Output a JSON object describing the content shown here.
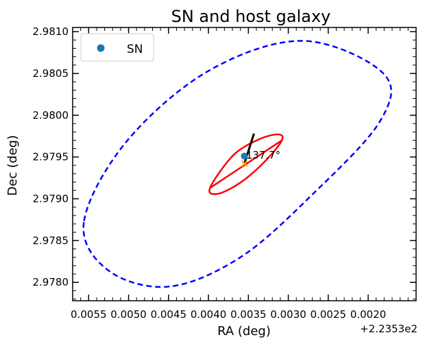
{
  "chart_data": {
    "type": "scatter",
    "title": "SN and host galaxy",
    "xlabel": "RA (deg)",
    "ylabel": "Dec (deg)",
    "x_offset_label": "+2.2353e2",
    "xlim": [
      0.0057,
      0.0014
    ],
    "ylim": [
      2.97778,
      2.98105
    ],
    "x_major_ticks": [
      0.0055,
      0.005,
      0.0045,
      0.004,
      0.0035,
      0.003,
      0.0025,
      0.002
    ],
    "x_tick_labels": [
      "0.0055",
      "0.0050",
      "0.0045",
      "0.0040",
      "0.0035",
      "0.0030",
      "0.0025",
      "0.0020"
    ],
    "y_major_ticks": [
      2.978,
      2.9785,
      2.979,
      2.9795,
      2.98,
      2.9805,
      2.981
    ],
    "y_tick_labels": [
      "2.9780",
      "2.9785",
      "2.9790",
      "2.9795",
      "2.9800",
      "2.9805",
      "2.9810"
    ],
    "legend_position": "upper-left",
    "grid": false,
    "series": [
      {
        "name": "SN",
        "kind": "scatter",
        "color": "#1f77b4",
        "points": [
          [
            0.00355,
            2.97951
          ]
        ]
      }
    ],
    "host_center": {
      "x": 0.00355,
      "y": 2.97942,
      "color": "#ffa500"
    },
    "outer_ellipse": {
      "color": "#0000ff",
      "style": "dashed",
      "outline": [
        [
          0.00556,
          2.97872
        ],
        [
          0.00525,
          2.97814
        ],
        [
          0.00449,
          2.97795
        ],
        [
          0.0036,
          2.9783
        ],
        [
          0.0027,
          2.97905
        ],
        [
          0.00185,
          2.97993
        ],
        [
          0.00181,
          2.9805
        ],
        [
          0.00282,
          2.98089
        ],
        [
          0.004,
          2.98053
        ],
        [
          0.00503,
          2.97968
        ]
      ]
    },
    "inner_ellipse": {
      "color": "#ff0000",
      "style": "solid",
      "outline": [
        [
          0.00398,
          2.97913
        ],
        [
          0.00388,
          2.97906
        ],
        [
          0.00359,
          2.9792
        ],
        [
          0.00328,
          2.97946
        ],
        [
          0.00308,
          2.9797
        ],
        [
          0.00313,
          2.97977
        ],
        [
          0.00337,
          2.97971
        ],
        [
          0.00369,
          2.97952
        ]
      ]
    },
    "angle_line": {
      "color": "#ff0000",
      "from": [
        0.00398,
        2.97913
      ],
      "to": [
        0.00308,
        2.9797
      ]
    },
    "direction_line": {
      "color": "#000000",
      "from": [
        0.00355,
        2.97942
      ],
      "to": [
        0.00343,
        2.97978
      ]
    },
    "annotation": {
      "text": "137.7°",
      "color": "#ff0000",
      "x": 0.00353,
      "y": 2.97952
    }
  }
}
